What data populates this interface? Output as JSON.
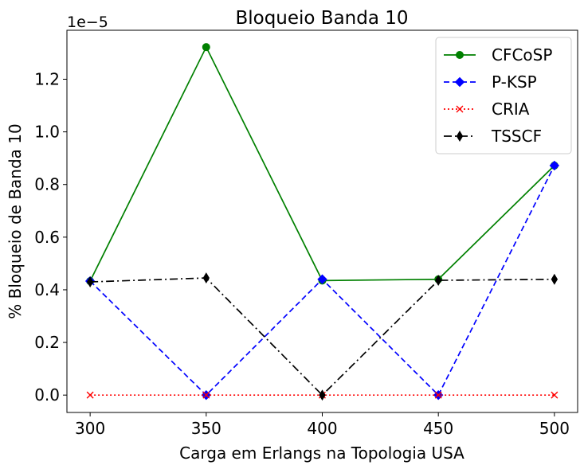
{
  "chart_data": {
    "type": "line",
    "title": "Bloqueio Banda 10",
    "xlabel": "Carga em Erlangs na Topologia USA",
    "ylabel": "% Bloqueio de Banda 10",
    "offset_text": "1e−5",
    "x": [
      300,
      350,
      400,
      450,
      500
    ],
    "xticks": [
      "300",
      "350",
      "400",
      "450",
      "500"
    ],
    "xlim": [
      290,
      510
    ],
    "yticks": [
      "0.0",
      "0.2",
      "0.4",
      "0.6",
      "0.8",
      "1.0",
      "1.2"
    ],
    "ytick_values": [
      0.0,
      0.2,
      0.4,
      0.6,
      0.8,
      1.0,
      1.2
    ],
    "ylim": [
      -0.066,
      1.386
    ],
    "y_scale": "1e-5",
    "legend_position": "top-right",
    "grid": false,
    "series": [
      {
        "name": "CFCoSP",
        "color": "#008000",
        "marker": "circle",
        "dash": "solid",
        "values": [
          0.433,
          1.322,
          0.435,
          0.44,
          0.872
        ]
      },
      {
        "name": "P-KSP",
        "color": "#0000ff",
        "marker": "diamond",
        "dash": "dashed",
        "values": [
          0.433,
          0.0,
          0.44,
          0.0,
          0.872
        ]
      },
      {
        "name": "CRIA",
        "color": "#ff0000",
        "marker": "x",
        "dash": "dotted",
        "values": [
          0.0,
          0.0,
          0.0,
          0.0,
          0.0
        ]
      },
      {
        "name": "TSSCF",
        "color": "#000000",
        "marker": "thin-diamond",
        "dash": "dashdot",
        "values": [
          0.43,
          0.445,
          0.0,
          0.436,
          0.44
        ]
      }
    ]
  }
}
